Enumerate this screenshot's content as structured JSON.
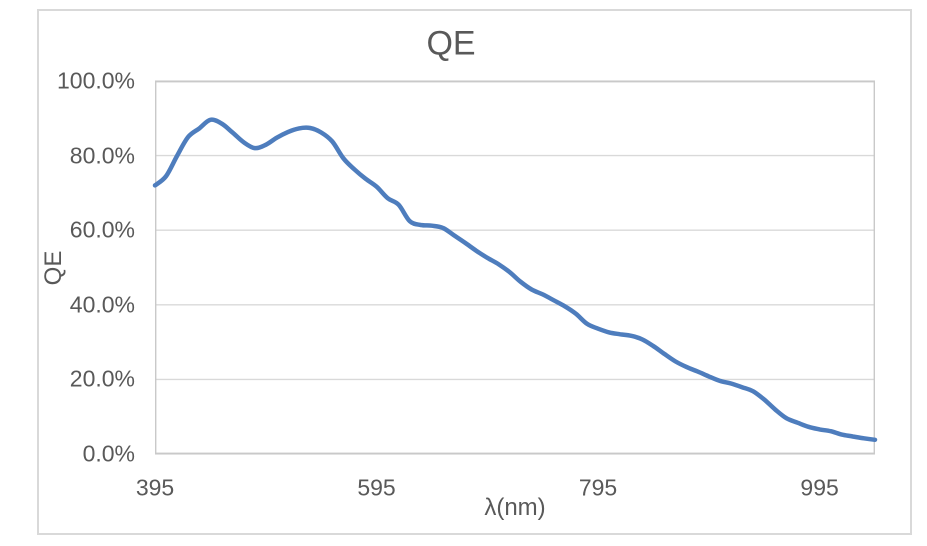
{
  "chart_data": {
    "type": "line",
    "title": "QE",
    "xlabel": "λ(nm)",
    "ylabel": "QE",
    "xlim": [
      395,
      1045
    ],
    "ylim": [
      0,
      100
    ],
    "grid": "horizontal",
    "legend": "none",
    "colors": {
      "line": "#4e7dbd",
      "grid": "#d9d9d9",
      "plot_border": "#c9c9c9",
      "text": "#595959",
      "card_border": "#d9d9d9",
      "background": "#ffffff"
    },
    "x_ticks": [
      {
        "value": 395,
        "label": "395"
      },
      {
        "value": 595,
        "label": "595"
      },
      {
        "value": 795,
        "label": "795"
      },
      {
        "value": 995,
        "label": "995"
      }
    ],
    "y_ticks": [
      {
        "value": 100,
        "label": "100.0%"
      },
      {
        "value": 80,
        "label": "80.0%"
      },
      {
        "value": 60,
        "label": "60.0%"
      },
      {
        "value": 40,
        "label": "40.0%"
      },
      {
        "value": 20,
        "label": "20.0%"
      },
      {
        "value": 0,
        "label": "0.0%"
      }
    ],
    "series": [
      {
        "name": "QE",
        "unit": "percent",
        "smooth": true,
        "x": [
          395,
          405,
          415,
          425,
          435,
          445,
          455,
          465,
          475,
          485,
          495,
          505,
          515,
          525,
          535,
          545,
          555,
          565,
          575,
          585,
          595,
          605,
          615,
          625,
          635,
          645,
          655,
          665,
          675,
          685,
          695,
          705,
          715,
          725,
          735,
          745,
          755,
          765,
          775,
          785,
          795,
          805,
          815,
          825,
          835,
          845,
          855,
          865,
          875,
          885,
          895,
          905,
          915,
          925,
          935,
          945,
          955,
          965,
          975,
          985,
          995,
          1005,
          1015,
          1025,
          1035,
          1045
        ],
        "values": [
          72.0,
          74.5,
          80.0,
          85.0,
          87.3,
          89.6,
          88.6,
          86.2,
          83.6,
          82.0,
          82.9,
          84.8,
          86.3,
          87.3,
          87.4,
          86.2,
          83.8,
          79.3,
          76.3,
          73.8,
          71.7,
          68.6,
          66.8,
          62.4,
          61.4,
          61.2,
          60.6,
          58.6,
          56.6,
          54.5,
          52.6,
          50.9,
          48.8,
          46.2,
          44.1,
          42.8,
          41.2,
          39.6,
          37.6,
          34.9,
          33.6,
          32.6,
          32.1,
          31.7,
          30.7,
          28.9,
          26.8,
          24.8,
          23.3,
          22.1,
          20.8,
          19.6,
          18.9,
          17.9,
          16.8,
          14.6,
          11.9,
          9.6,
          8.4,
          7.3,
          6.6,
          6.1,
          5.2,
          4.7,
          4.2,
          3.8
        ]
      }
    ]
  }
}
